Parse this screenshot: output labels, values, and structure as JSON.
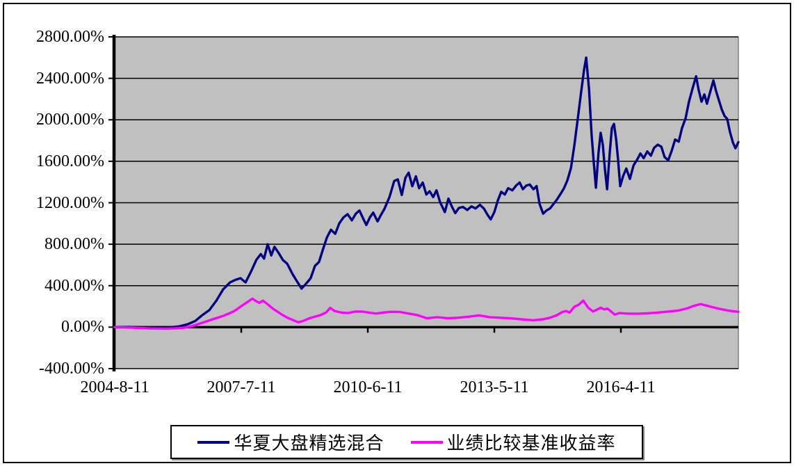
{
  "chart_data": {
    "type": "line",
    "title": "",
    "plot": {
      "background": "#C0C0C0",
      "gridlines": "horizontal",
      "gridline_color": "#000000",
      "axis_color": "#000000"
    },
    "x_axis": {
      "unit": "date",
      "tick_labels": [
        "2004-8-11",
        "2007-7-11",
        "2010-6-11",
        "2013-5-11",
        "2016-4-11"
      ],
      "tick_positions_months": [
        0,
        35,
        70,
        105,
        140
      ],
      "x_min_months": 0,
      "x_max_months": 172.5
    },
    "y_axis": {
      "unit": "%",
      "min": -400,
      "max": 2800,
      "step": 400,
      "tick_labels": [
        "2800.00%",
        "2400.00%",
        "2000.00%",
        "1600.00%",
        "1200.00%",
        "800.00%",
        "400.00%",
        "0.00%",
        "-400.00%"
      ]
    },
    "legend": {
      "position": "bottom-center",
      "border": true
    },
    "series": [
      {
        "name": "华夏大盘精选混合",
        "color": "#000080",
        "points": [
          [
            0,
            0
          ],
          [
            3.8,
            2
          ],
          [
            7.7,
            -3
          ],
          [
            11.5,
            -6
          ],
          [
            15.4,
            -2
          ],
          [
            17.9,
            8
          ],
          [
            20.2,
            28
          ],
          [
            22.3,
            60
          ],
          [
            24.2,
            115
          ],
          [
            26.2,
            165
          ],
          [
            28.1,
            255
          ],
          [
            30,
            365
          ],
          [
            31.9,
            432
          ],
          [
            33.5,
            458
          ],
          [
            34.8,
            472
          ],
          [
            36.2,
            432
          ],
          [
            37.7,
            535
          ],
          [
            39.2,
            650
          ],
          [
            40.4,
            705
          ],
          [
            41.3,
            662
          ],
          [
            42.3,
            800
          ],
          [
            43.3,
            692
          ],
          [
            44.2,
            775
          ],
          [
            45.4,
            712
          ],
          [
            46.5,
            648
          ],
          [
            47.7,
            612
          ],
          [
            49.2,
            512
          ],
          [
            50.6,
            432
          ],
          [
            51.7,
            372
          ],
          [
            52.9,
            418
          ],
          [
            54.2,
            472
          ],
          [
            55.4,
            592
          ],
          [
            56.5,
            628
          ],
          [
            57.5,
            740
          ],
          [
            58.7,
            865
          ],
          [
            59.8,
            940
          ],
          [
            61,
            900
          ],
          [
            62.1,
            1000
          ],
          [
            63.3,
            1060
          ],
          [
            64.4,
            1090
          ],
          [
            65.6,
            1030
          ],
          [
            66.7,
            1095
          ],
          [
            67.7,
            1125
          ],
          [
            68.7,
            1050
          ],
          [
            69.6,
            985
          ],
          [
            70.6,
            1060
          ],
          [
            71.5,
            1105
          ],
          [
            72.7,
            1020
          ],
          [
            73.6,
            1080
          ],
          [
            74.6,
            1140
          ],
          [
            76,
            1255
          ],
          [
            77.3,
            1410
          ],
          [
            78.3,
            1425
          ],
          [
            79.4,
            1275
          ],
          [
            80.4,
            1440
          ],
          [
            81.3,
            1490
          ],
          [
            82.3,
            1360
          ],
          [
            83.3,
            1455
          ],
          [
            84.2,
            1340
          ],
          [
            85.2,
            1395
          ],
          [
            86.2,
            1280
          ],
          [
            87.1,
            1310
          ],
          [
            88.1,
            1255
          ],
          [
            89,
            1320
          ],
          [
            90,
            1205
          ],
          [
            91.3,
            1110
          ],
          [
            92.3,
            1240
          ],
          [
            93.3,
            1160
          ],
          [
            94.2,
            1100
          ],
          [
            95.2,
            1150
          ],
          [
            96.3,
            1160
          ],
          [
            97.5,
            1130
          ],
          [
            98.7,
            1165
          ],
          [
            99.8,
            1145
          ],
          [
            101,
            1180
          ],
          [
            102.1,
            1145
          ],
          [
            103.1,
            1085
          ],
          [
            104,
            1040
          ],
          [
            105,
            1110
          ],
          [
            106,
            1225
          ],
          [
            106.9,
            1305
          ],
          [
            107.9,
            1280
          ],
          [
            108.8,
            1340
          ],
          [
            110,
            1320
          ],
          [
            111,
            1365
          ],
          [
            112,
            1395
          ],
          [
            112.9,
            1330
          ],
          [
            113.8,
            1365
          ],
          [
            114.8,
            1375
          ],
          [
            115.8,
            1330
          ],
          [
            116.7,
            1360
          ],
          [
            117.5,
            1190
          ],
          [
            118.5,
            1095
          ],
          [
            119.4,
            1125
          ],
          [
            120.4,
            1145
          ],
          [
            121.3,
            1185
          ],
          [
            122.3,
            1230
          ],
          [
            123.3,
            1285
          ],
          [
            124.2,
            1335
          ],
          [
            125.2,
            1415
          ],
          [
            126.2,
            1535
          ],
          [
            127.1,
            1745
          ],
          [
            128.1,
            2015
          ],
          [
            129,
            2265
          ],
          [
            129.8,
            2480
          ],
          [
            130.4,
            2600
          ],
          [
            131.2,
            2295
          ],
          [
            131.9,
            1855
          ],
          [
            132.5,
            1590
          ],
          [
            133.1,
            1345
          ],
          [
            133.8,
            1680
          ],
          [
            134.4,
            1875
          ],
          [
            135,
            1760
          ],
          [
            135.6,
            1520
          ],
          [
            136.2,
            1330
          ],
          [
            136.9,
            1675
          ],
          [
            137.5,
            1920
          ],
          [
            138.1,
            1960
          ],
          [
            138.7,
            1810
          ],
          [
            139.2,
            1630
          ],
          [
            139.8,
            1360
          ],
          [
            140.6,
            1455
          ],
          [
            141.5,
            1530
          ],
          [
            142.5,
            1430
          ],
          [
            143.5,
            1560
          ],
          [
            144.4,
            1610
          ],
          [
            145.4,
            1675
          ],
          [
            146.3,
            1630
          ],
          [
            147.3,
            1695
          ],
          [
            148.3,
            1655
          ],
          [
            149.2,
            1730
          ],
          [
            150.2,
            1760
          ],
          [
            151.2,
            1740
          ],
          [
            152.1,
            1640
          ],
          [
            153.1,
            1610
          ],
          [
            154,
            1695
          ],
          [
            155,
            1810
          ],
          [
            156,
            1790
          ],
          [
            156.9,
            1920
          ],
          [
            157.9,
            2015
          ],
          [
            158.8,
            2170
          ],
          [
            159.8,
            2300
          ],
          [
            160.8,
            2420
          ],
          [
            161.5,
            2290
          ],
          [
            162.3,
            2175
          ],
          [
            163.1,
            2245
          ],
          [
            163.8,
            2155
          ],
          [
            164.6,
            2255
          ],
          [
            165.6,
            2380
          ],
          [
            166.3,
            2280
          ],
          [
            167.1,
            2190
          ],
          [
            167.9,
            2100
          ],
          [
            168.7,
            2035
          ],
          [
            169.4,
            2010
          ],
          [
            170.2,
            1880
          ],
          [
            171,
            1780
          ],
          [
            171.7,
            1725
          ],
          [
            172.5,
            1785
          ]
        ]
      },
      {
        "name": "业绩比较基准收益率",
        "color": "#FF00FF",
        "points": [
          [
            0,
            0
          ],
          [
            4.8,
            -4
          ],
          [
            9.6,
            -12
          ],
          [
            14.4,
            -15
          ],
          [
            18.7,
            -8
          ],
          [
            21.3,
            10
          ],
          [
            24.2,
            42
          ],
          [
            27.1,
            76
          ],
          [
            30,
            108
          ],
          [
            32.9,
            152
          ],
          [
            34.8,
            198
          ],
          [
            36.7,
            242
          ],
          [
            38.1,
            275
          ],
          [
            39.2,
            248
          ],
          [
            40,
            235
          ],
          [
            41,
            256
          ],
          [
            42.5,
            215
          ],
          [
            43.8,
            176
          ],
          [
            45,
            150
          ],
          [
            46.3,
            120
          ],
          [
            47.7,
            92
          ],
          [
            49.2,
            70
          ],
          [
            50.8,
            47
          ],
          [
            52.3,
            62
          ],
          [
            53.8,
            86
          ],
          [
            55.4,
            102
          ],
          [
            56.9,
            116
          ],
          [
            58.5,
            142
          ],
          [
            59.6,
            186
          ],
          [
            60.8,
            156
          ],
          [
            62.7,
            141
          ],
          [
            64.6,
            136
          ],
          [
            66.5,
            150
          ],
          [
            68.5,
            150
          ],
          [
            70.4,
            140
          ],
          [
            72.3,
            131
          ],
          [
            74.2,
            141
          ],
          [
            76.2,
            148
          ],
          [
            78.8,
            147
          ],
          [
            81.3,
            131
          ],
          [
            83.8,
            115
          ],
          [
            86.3,
            86
          ],
          [
            89.2,
            96
          ],
          [
            92.1,
            86
          ],
          [
            95,
            91
          ],
          [
            97.9,
            101
          ],
          [
            100.8,
            114
          ],
          [
            103.7,
            96
          ],
          [
            106.5,
            91
          ],
          [
            109.4,
            86
          ],
          [
            112.3,
            76
          ],
          [
            115.8,
            66
          ],
          [
            118.5,
            76
          ],
          [
            120.4,
            91
          ],
          [
            122.3,
            116
          ],
          [
            123.8,
            146
          ],
          [
            124.8,
            156
          ],
          [
            125.8,
            141
          ],
          [
            127.1,
            196
          ],
          [
            128.3,
            216
          ],
          [
            129.6,
            256
          ],
          [
            131,
            186
          ],
          [
            132.3,
            151
          ],
          [
            133.5,
            171
          ],
          [
            134.4,
            188
          ],
          [
            135.4,
            171
          ],
          [
            136.3,
            179
          ],
          [
            137.3,
            151
          ],
          [
            138.3,
            121
          ],
          [
            139.6,
            136
          ],
          [
            141.5,
            131
          ],
          [
            144.4,
            129
          ],
          [
            147.3,
            133
          ],
          [
            150.2,
            141
          ],
          [
            153.1,
            151
          ],
          [
            156,
            161
          ],
          [
            158.3,
            181
          ],
          [
            159.8,
            201
          ],
          [
            161.2,
            215
          ],
          [
            162.1,
            222
          ],
          [
            163.5,
            210
          ],
          [
            165,
            196
          ],
          [
            166.5,
            183
          ],
          [
            168.3,
            169
          ],
          [
            170,
            158
          ],
          [
            171.4,
            152
          ],
          [
            172.5,
            148
          ]
        ]
      }
    ]
  }
}
